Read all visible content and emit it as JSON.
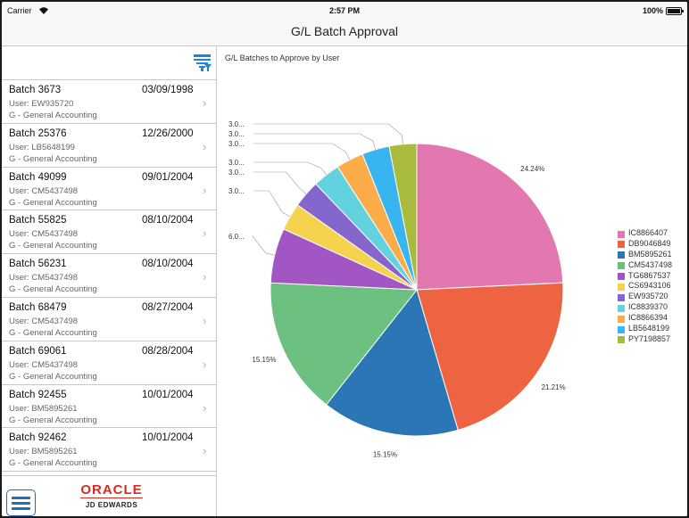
{
  "status": {
    "carrier": "Carrier",
    "time": "2:57 PM",
    "battery": "100%"
  },
  "nav": {
    "title": "G/L Batch Approval"
  },
  "batches": [
    {
      "name": "Batch 3673",
      "date": "03/09/1998",
      "user": "User: EW935720",
      "type": "G - General Accounting"
    },
    {
      "name": "Batch 25376",
      "date": "12/26/2000",
      "user": "User: LB5648199",
      "type": "G - General Accounting"
    },
    {
      "name": "Batch 49099",
      "date": "09/01/2004",
      "user": "User: CM5437498",
      "type": "G - General Accounting"
    },
    {
      "name": "Batch 55825",
      "date": "08/10/2004",
      "user": "User: CM5437498",
      "type": "G - General Accounting"
    },
    {
      "name": "Batch 56231",
      "date": "08/10/2004",
      "user": "User: CM5437498",
      "type": "G - General Accounting"
    },
    {
      "name": "Batch 68479",
      "date": "08/27/2004",
      "user": "User: CM5437498",
      "type": "G - General Accounting"
    },
    {
      "name": "Batch 69061",
      "date": "08/28/2004",
      "user": "User: CM5437498",
      "type": "G - General Accounting"
    },
    {
      "name": "Batch 92455",
      "date": "10/01/2004",
      "user": "User: BM5895261",
      "type": "G - General Accounting"
    },
    {
      "name": "Batch 92462",
      "date": "10/01/2004",
      "user": "User: BM5895261",
      "type": "G - General Accounting"
    }
  ],
  "branding": {
    "oracle": "ORACLE",
    "product": "JD EDWARDS"
  },
  "icons": {
    "filter": "filter-icon",
    "menu": "hamburger-menu-icon",
    "chevron": "chevron-right-icon",
    "wifi": "wifi-icon",
    "battery": "battery-icon"
  },
  "chart_data": {
    "type": "pie",
    "title": "G/L Batches to Approve by User",
    "legend_position": "right",
    "slices": [
      {
        "name": "IC8866407",
        "value": 24.24,
        "label": "24.24%",
        "color": "#e377b0"
      },
      {
        "name": "DB9046849",
        "value": 21.21,
        "label": "21.21%",
        "color": "#ee6342"
      },
      {
        "name": "BM5895261",
        "value": 15.15,
        "label": "15.15%",
        "color": "#2b76b4"
      },
      {
        "name": "CM5437498",
        "value": 15.15,
        "label": "15.15%",
        "color": "#6cc080"
      },
      {
        "name": "TG6867537",
        "value": 6.06,
        "label": "6.0...",
        "color": "#a156c4"
      },
      {
        "name": "CS6943106",
        "value": 3.03,
        "label": "3.0...",
        "color": "#f6d34e"
      },
      {
        "name": "EW935720",
        "value": 3.03,
        "label": "3.0...",
        "color": "#8466cd"
      },
      {
        "name": "IC8839370",
        "value": 3.03,
        "label": "3.0...",
        "color": "#62d2de"
      },
      {
        "name": "IC8866394",
        "value": 3.03,
        "label": "3.0...",
        "color": "#fcac48"
      },
      {
        "name": "LB5648199",
        "value": 3.03,
        "label": "3.0...",
        "color": "#38b5ee"
      },
      {
        "name": "PY7198857",
        "value": 3.03,
        "label": "3.0...",
        "color": "#a8bb3d"
      }
    ]
  }
}
